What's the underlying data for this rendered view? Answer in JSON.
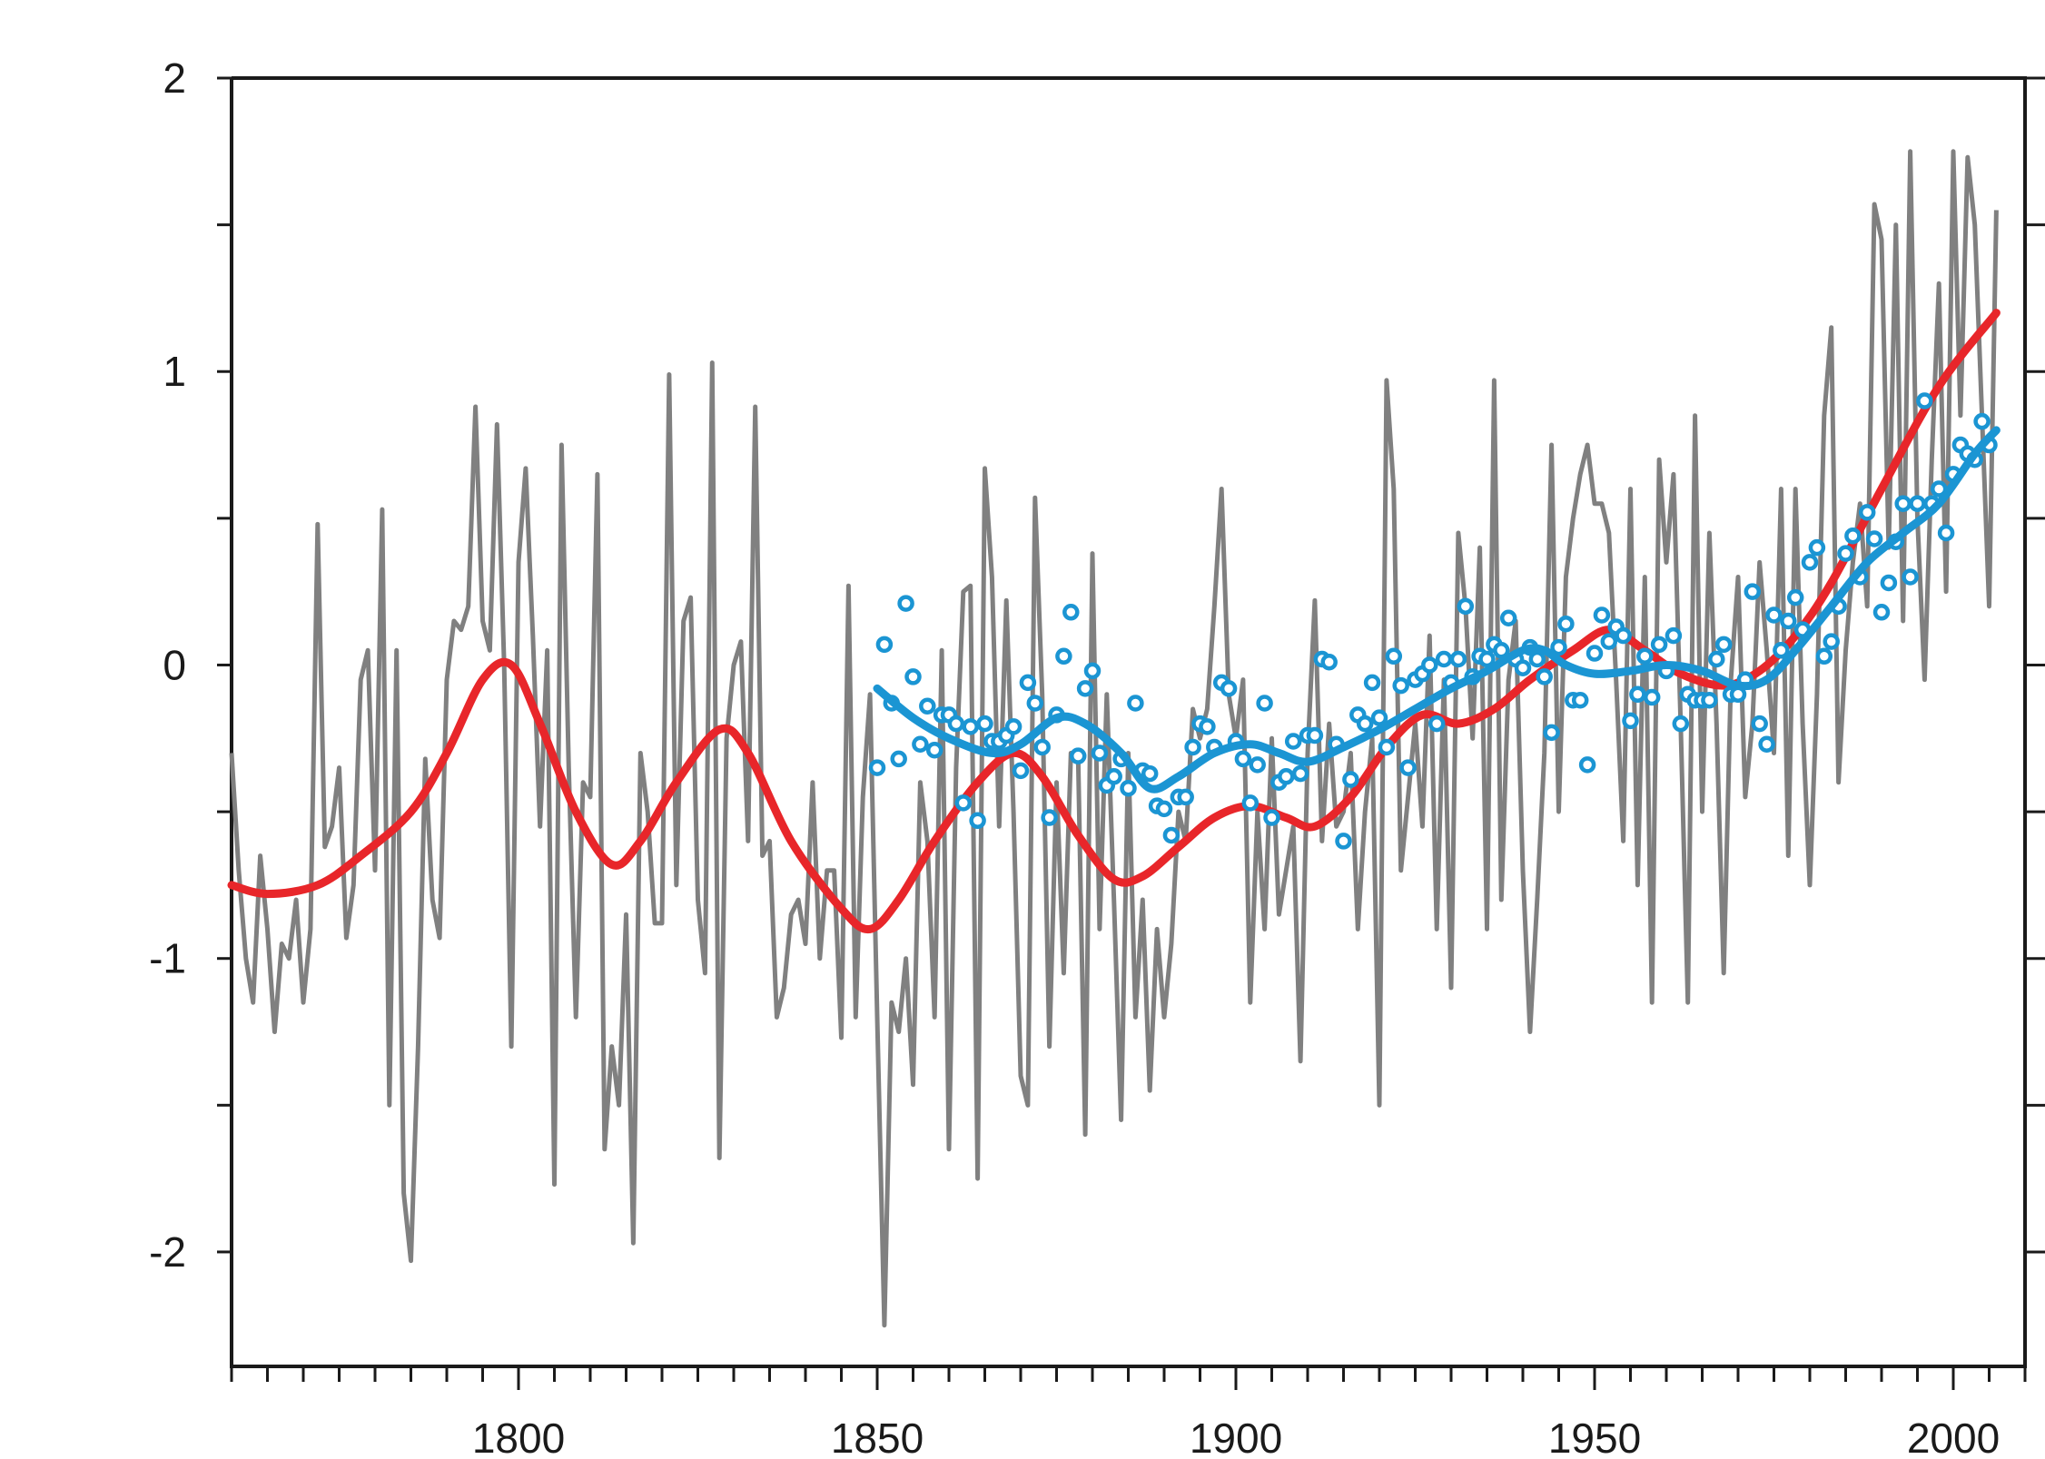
{
  "chart_data": {
    "type": "line",
    "title": "",
    "xlabel": "",
    "ylabel": "",
    "xlim": [
      1760,
      2010
    ],
    "ylim": [
      -2.39,
      2
    ],
    "grid": false,
    "x_ticks": [
      "1800",
      "1850",
      "1900",
      "1950",
      "2000"
    ],
    "x_tick_values": [
      1800,
      1850,
      1900,
      1950,
      2000
    ],
    "y_ticks": [
      "2",
      "1",
      "0",
      "-1",
      "-2"
    ],
    "y_tick_values": [
      2,
      1,
      0,
      -1,
      -2
    ],
    "colors": {
      "annual": "#808080",
      "smooth_long": "#e8262a",
      "points": "#1b95d3",
      "smooth_short": "#1b95d3"
    },
    "series": [
      {
        "name": "annual",
        "kind": "line",
        "start_year": 1760,
        "values": [
          -0.3,
          -0.7,
          -1.0,
          -1.15,
          -0.65,
          -0.9,
          -1.25,
          -0.95,
          -1.0,
          -0.8,
          -1.15,
          -0.9,
          0.48,
          -0.62,
          -0.55,
          -0.35,
          -0.93,
          -0.75,
          -0.05,
          0.05,
          -0.7,
          0.53,
          -1.5,
          0.05,
          -1.8,
          -2.03,
          -1.3,
          -0.32,
          -0.8,
          -0.93,
          -0.05,
          0.15,
          0.12,
          0.2,
          0.88,
          0.15,
          0.05,
          0.82,
          0.0,
          -1.3,
          0.35,
          0.67,
          0.1,
          -0.55,
          0.05,
          -1.77,
          0.75,
          -0.35,
          -1.2,
          -0.4,
          -0.45,
          0.65,
          -1.65,
          -1.3,
          -1.5,
          -0.85,
          -1.97,
          -0.3,
          -0.5,
          -0.88,
          -0.88,
          0.99,
          -0.75,
          0.15,
          0.23,
          -0.8,
          -1.05,
          1.03,
          -1.68,
          -0.25,
          0.0,
          0.08,
          -0.6,
          0.88,
          -0.65,
          -0.6,
          -1.2,
          -1.1,
          -0.85,
          -0.8,
          -0.95,
          -0.4,
          -1.0,
          -0.7,
          -0.7,
          -1.27,
          0.27,
          -1.2,
          -0.45,
          -0.1,
          -1.2,
          -2.25,
          -1.15,
          -1.25,
          -1.0,
          -1.43,
          -0.4,
          -0.6,
          -1.2,
          0.05,
          -1.65,
          -0.35,
          0.25,
          0.27,
          -1.75,
          0.67,
          0.3,
          -0.55,
          0.22,
          -0.5,
          -1.4,
          -1.5,
          0.57,
          -0.1,
          -1.3,
          -0.4,
          -1.05,
          -0.3,
          -0.3,
          -1.6,
          0.38,
          -0.9,
          -0.1,
          -0.8,
          -1.55,
          -0.3,
          -1.2,
          -0.8,
          -1.45,
          -0.9,
          -1.2,
          -0.95,
          -0.5,
          -0.6,
          -0.15,
          -0.25,
          -0.15,
          0.2,
          0.6,
          -0.1,
          -0.25,
          -0.05,
          -1.15,
          -0.5,
          -0.9,
          -0.25,
          -0.85,
          -0.7,
          -0.55,
          -1.35,
          -0.3,
          0.22,
          -0.6,
          -0.2,
          -0.55,
          -0.5,
          -0.3,
          -0.9,
          -0.5,
          -0.25,
          -1.5,
          0.97,
          0.6,
          -0.7,
          -0.45,
          -0.2,
          -0.55,
          0.1,
          -0.9,
          -0.05,
          -1.1,
          0.45,
          0.2,
          -0.25,
          0.4,
          -0.9,
          0.97,
          -0.8,
          -0.05,
          0.15,
          -0.7,
          -1.25,
          -0.8,
          -0.3,
          0.75,
          -0.5,
          0.3,
          0.5,
          0.65,
          0.75,
          0.55,
          0.55,
          0.45,
          -0.05,
          -0.6,
          0.6,
          -0.75,
          0.3,
          -1.15,
          0.7,
          0.35,
          0.65,
          -0.2,
          -1.15,
          0.85,
          -0.5,
          0.45,
          -0.2,
          -1.05,
          -0.05,
          0.3,
          -0.45,
          -0.2,
          0.35,
          0.05,
          -0.3,
          0.6,
          -0.65,
          0.6,
          -0.2,
          -0.75,
          -0.1,
          0.85,
          1.15,
          -0.4,
          0.05,
          0.35,
          0.55,
          0.2,
          1.57,
          1.45,
          0.4,
          1.5,
          0.15,
          1.75,
          0.5,
          -0.05,
          0.7,
          1.3,
          0.25,
          1.75,
          0.85,
          1.73,
          1.5,
          0.85,
          0.2,
          1.55
        ]
      },
      {
        "name": "smooth_long",
        "kind": "smooth",
        "points": [
          [
            1760,
            -0.75
          ],
          [
            1765,
            -0.78
          ],
          [
            1772,
            -0.75
          ],
          [
            1778,
            -0.65
          ],
          [
            1785,
            -0.5
          ],
          [
            1790,
            -0.3
          ],
          [
            1795,
            -0.05
          ],
          [
            1799,
            0.0
          ],
          [
            1803,
            -0.2
          ],
          [
            1808,
            -0.5
          ],
          [
            1813,
            -0.68
          ],
          [
            1817,
            -0.6
          ],
          [
            1822,
            -0.4
          ],
          [
            1828,
            -0.22
          ],
          [
            1832,
            -0.3
          ],
          [
            1838,
            -0.6
          ],
          [
            1845,
            -0.83
          ],
          [
            1849,
            -0.9
          ],
          [
            1853,
            -0.8
          ],
          [
            1858,
            -0.6
          ],
          [
            1864,
            -0.4
          ],
          [
            1869,
            -0.3
          ],
          [
            1873,
            -0.38
          ],
          [
            1878,
            -0.58
          ],
          [
            1883,
            -0.73
          ],
          [
            1887,
            -0.72
          ],
          [
            1892,
            -0.62
          ],
          [
            1897,
            -0.52
          ],
          [
            1902,
            -0.48
          ],
          [
            1907,
            -0.52
          ],
          [
            1911,
            -0.55
          ],
          [
            1916,
            -0.45
          ],
          [
            1921,
            -0.28
          ],
          [
            1926,
            -0.17
          ],
          [
            1931,
            -0.2
          ],
          [
            1936,
            -0.15
          ],
          [
            1941,
            -0.05
          ],
          [
            1947,
            0.05
          ],
          [
            1952,
            0.12
          ],
          [
            1957,
            0.05
          ],
          [
            1962,
            -0.03
          ],
          [
            1968,
            -0.07
          ],
          [
            1973,
            -0.02
          ],
          [
            1978,
            0.1
          ],
          [
            1983,
            0.28
          ],
          [
            1990,
            0.6
          ],
          [
            1998,
            0.95
          ],
          [
            2006,
            1.2
          ]
        ]
      },
      {
        "name": "points",
        "kind": "scatter",
        "start_year": 1850,
        "values": [
          -0.35,
          0.07,
          -0.13,
          -0.32,
          0.21,
          -0.04,
          -0.27,
          -0.14,
          -0.29,
          -0.17,
          -0.17,
          -0.2,
          -0.47,
          -0.21,
          -0.53,
          -0.2,
          -0.26,
          -0.26,
          -0.24,
          -0.21,
          -0.36,
          -0.06,
          -0.13,
          -0.28,
          -0.52,
          -0.17,
          0.03,
          0.18,
          -0.31,
          -0.08,
          -0.02,
          -0.3,
          -0.41,
          -0.38,
          -0.32,
          -0.42,
          -0.13,
          -0.36,
          -0.37,
          -0.48,
          -0.49,
          -0.58,
          -0.45,
          -0.45,
          -0.28,
          -0.2,
          -0.21,
          -0.28,
          -0.06,
          -0.08,
          -0.26,
          -0.32,
          -0.47,
          -0.34,
          -0.13,
          -0.52,
          -0.4,
          -0.38,
          -0.26,
          -0.37,
          -0.24,
          -0.24,
          0.02,
          0.01,
          -0.27,
          -0.6,
          -0.39,
          -0.17,
          -0.2,
          -0.06,
          -0.18,
          -0.28,
          0.03,
          -0.07,
          -0.35,
          -0.05,
          -0.03,
          0.0,
          -0.2,
          0.02,
          -0.06,
          0.02,
          0.2,
          -0.04,
          0.03,
          0.02,
          0.07,
          0.05,
          0.16,
          0.02,
          -0.01,
          0.06,
          0.02,
          -0.04,
          -0.23,
          0.06,
          0.14,
          -0.12,
          -0.12,
          -0.34,
          0.04,
          0.17,
          0.08,
          0.13,
          0.1,
          -0.19,
          -0.1,
          0.03,
          -0.11,
          0.07,
          -0.02,
          0.1,
          -0.2,
          -0.1,
          -0.12,
          -0.12,
          -0.12,
          0.02,
          0.07,
          -0.1,
          -0.1,
          -0.05,
          0.25,
          -0.2,
          -0.27,
          0.17,
          0.05,
          0.15,
          0.23,
          0.12,
          0.35,
          0.4,
          0.03,
          0.08,
          0.2,
          0.38,
          0.44,
          0.3,
          0.52,
          0.43,
          0.18,
          0.28,
          0.42,
          0.55,
          0.3,
          0.55,
          0.9,
          0.55,
          0.6,
          0.45,
          0.65,
          0.75,
          0.72,
          0.7,
          0.83,
          0.75
        ]
      },
      {
        "name": "smooth_short",
        "kind": "smooth",
        "points": [
          [
            1850,
            -0.08
          ],
          [
            1855,
            -0.18
          ],
          [
            1860,
            -0.25
          ],
          [
            1866,
            -0.3
          ],
          [
            1870,
            -0.27
          ],
          [
            1875,
            -0.18
          ],
          [
            1879,
            -0.2
          ],
          [
            1884,
            -0.3
          ],
          [
            1888,
            -0.42
          ],
          [
            1892,
            -0.38
          ],
          [
            1897,
            -0.3
          ],
          [
            1902,
            -0.27
          ],
          [
            1906,
            -0.3
          ],
          [
            1910,
            -0.33
          ],
          [
            1915,
            -0.28
          ],
          [
            1920,
            -0.22
          ],
          [
            1925,
            -0.15
          ],
          [
            1930,
            -0.08
          ],
          [
            1935,
            -0.02
          ],
          [
            1940,
            0.05
          ],
          [
            1943,
            0.05
          ],
          [
            1946,
            0.0
          ],
          [
            1950,
            -0.03
          ],
          [
            1955,
            -0.02
          ],
          [
            1960,
            0.0
          ],
          [
            1965,
            -0.02
          ],
          [
            1970,
            -0.07
          ],
          [
            1974,
            -0.05
          ],
          [
            1978,
            0.05
          ],
          [
            1983,
            0.2
          ],
          [
            1988,
            0.35
          ],
          [
            1993,
            0.45
          ],
          [
            1998,
            0.55
          ],
          [
            2003,
            0.72
          ],
          [
            2006,
            0.8
          ]
        ]
      }
    ]
  }
}
